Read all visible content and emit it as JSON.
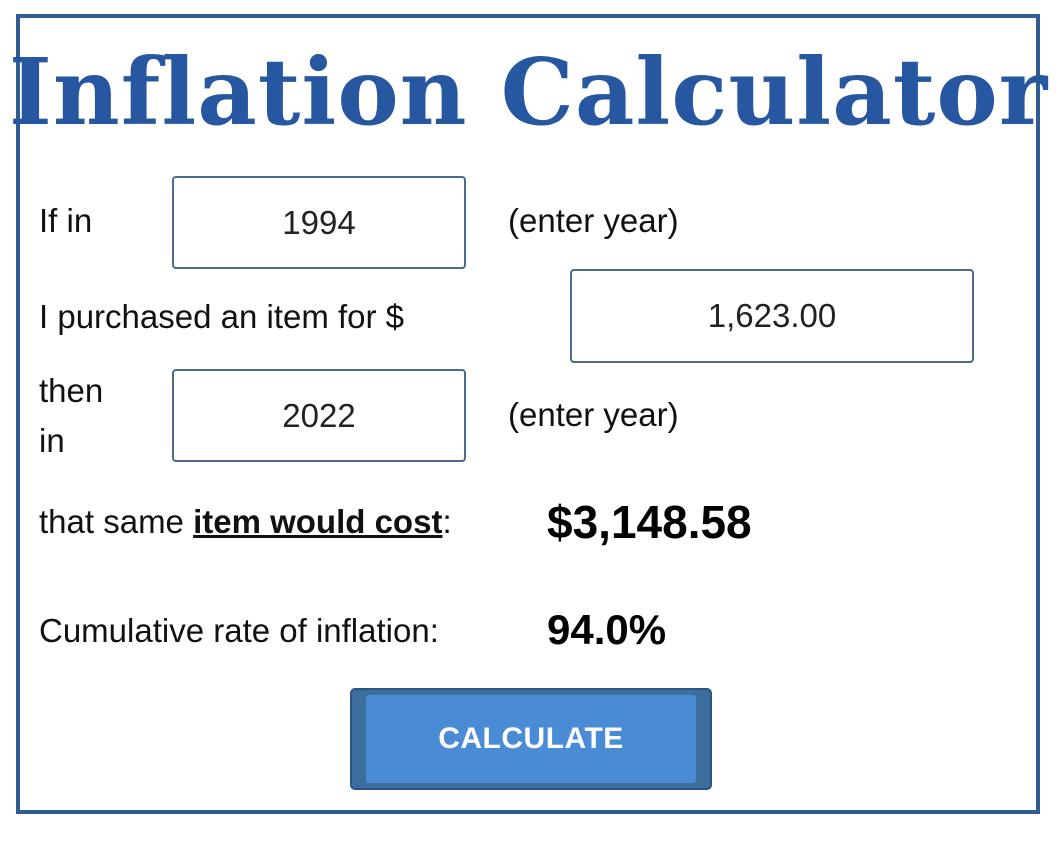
{
  "title": "Inflation Calculator",
  "form": {
    "start_year_label": "If in",
    "start_year_value": "1994",
    "start_year_hint": "(enter year)",
    "amount_label": "I purchased an item for $",
    "amount_value": "1,623.00",
    "end_year_label_line1": "then",
    "end_year_label_line2": "in",
    "end_year_value": "2022",
    "end_year_hint": "(enter year)"
  },
  "results": {
    "cost_label_prefix": "that same ",
    "cost_label_emphasis": "item would cost",
    "cost_label_suffix": ":",
    "cost_value": "$3,148.58",
    "inflation_label": "Cumulative rate of inflation:",
    "inflation_value": "94.0%"
  },
  "button": {
    "label": "CALCULATE"
  },
  "colors": {
    "title": "#2757a1",
    "frame_border": "#2f5d91",
    "button_face": "#4a8bd6",
    "button_border": "#3c6e9e",
    "input_border": "#4a6a8e"
  }
}
